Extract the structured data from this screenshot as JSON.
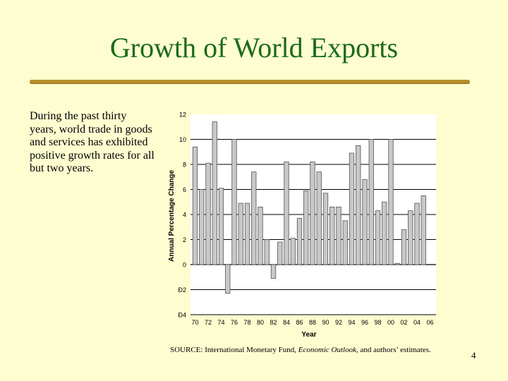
{
  "slide": {
    "title": "Growth of World Exports",
    "description": "During the past thirty years, world trade in goods and services has exhibited positive growth rates for all but two years.",
    "source_prefix": "SOURCE: International Monetary Fund, ",
    "source_italic": "Economic Outlook",
    "source_suffix": ", and authors’ estimates.",
    "page_number": "4"
  },
  "colors": {
    "background": "#fefdd0",
    "title": "#1a6b1a",
    "rule": "#b8902a",
    "plot_background": "#ffffff",
    "bar_fill": "#c8c8c8",
    "bar_stroke": "#555555",
    "gridline": "#000000"
  },
  "chart_data": {
    "type": "bar",
    "xlabel": "Year",
    "ylabel": "Annual Percentage Change",
    "ylim": [
      -4,
      12
    ],
    "yticks": [
      12,
      10,
      8,
      6,
      4,
      2,
      0,
      -2,
      -4
    ],
    "ytick_labels": [
      "12",
      "10",
      "8",
      "6",
      "4",
      "2",
      "0",
      "Ð2",
      "Ð4"
    ],
    "xtick_labels": [
      "70",
      "72",
      "74",
      "76",
      "78",
      "80",
      "82",
      "84",
      "86",
      "88",
      "90",
      "92",
      "94",
      "96",
      "98",
      "00",
      "02",
      "04",
      "06"
    ],
    "grid": "horizontal",
    "categories": [
      "1970",
      "1971",
      "1972",
      "1973",
      "1974",
      "1975",
      "1976",
      "1977",
      "1978",
      "1979",
      "1980",
      "1981",
      "1982",
      "1983",
      "1984",
      "1985",
      "1986",
      "1987",
      "1988",
      "1989",
      "1990",
      "1991",
      "1992",
      "1993",
      "1994",
      "1995",
      "1996",
      "1997",
      "1998",
      "1999",
      "2000",
      "2001",
      "2002",
      "2003",
      "2004",
      "2005",
      "2006"
    ],
    "values": [
      9.4,
      6.0,
      8.1,
      11.4,
      6.1,
      -2.3,
      10.0,
      4.9,
      4.9,
      7.4,
      4.6,
      2.0,
      -1.1,
      1.8,
      8.2,
      2.1,
      3.7,
      5.9,
      8.2,
      7.4,
      5.7,
      4.6,
      4.6,
      3.5,
      8.9,
      9.5,
      6.8,
      10.0,
      4.3,
      5.0,
      10.0,
      0.1,
      2.8,
      4.3,
      4.9,
      5.5,
      null
    ]
  }
}
